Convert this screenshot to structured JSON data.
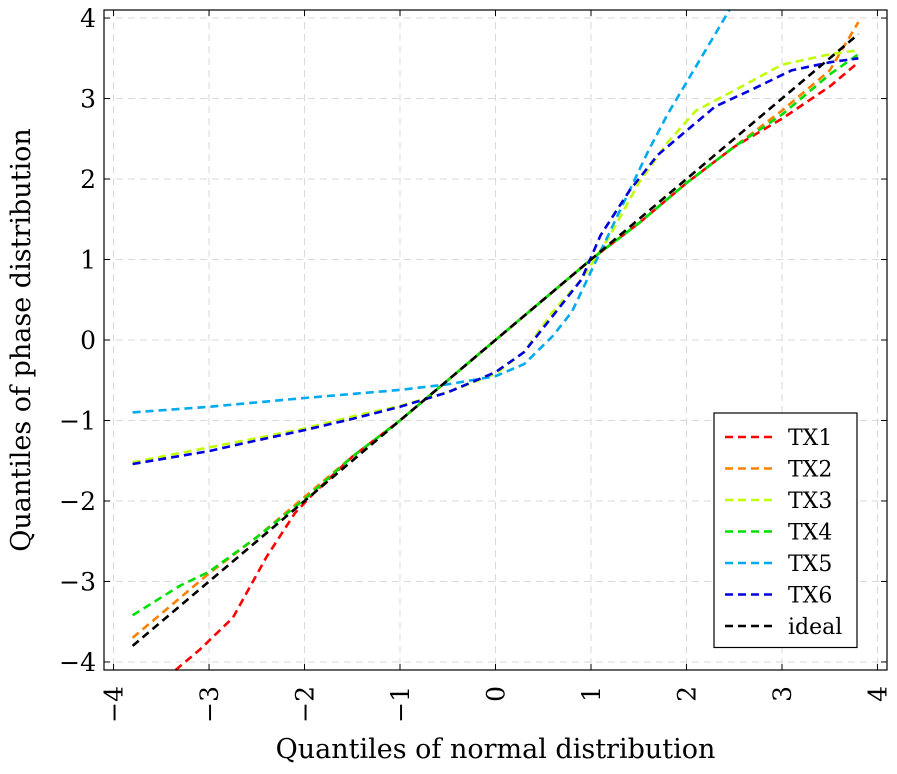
{
  "chart_data": {
    "type": "line",
    "title": "",
    "xlabel": "Quantiles of normal distribution",
    "ylabel": "Quantiles of phase distribution",
    "xlim": [
      -4.1,
      4.1
    ],
    "ylim": [
      -4.1,
      4.1
    ],
    "xticks": [
      -4,
      -3,
      -2,
      -1,
      0,
      1,
      2,
      3,
      4
    ],
    "xtick_labels": [
      "−4",
      "−3",
      "−2",
      "−1",
      "0",
      "1",
      "2",
      "3",
      "4"
    ],
    "yticks": [
      -4,
      -3,
      -2,
      -1,
      0,
      1,
      2,
      3,
      4
    ],
    "ytick_labels": [
      "−4",
      "−3",
      "−2",
      "−1",
      "0",
      "1",
      "2",
      "3",
      "4"
    ],
    "grid": true,
    "legend_position": "bottom-right",
    "series": [
      {
        "name": "TX1",
        "color": "#ff0000",
        "points": [
          [
            -3.35,
            -4.1
          ],
          [
            -3.1,
            -3.85
          ],
          [
            -2.75,
            -3.45
          ],
          [
            -2.4,
            -2.7
          ],
          [
            -2.1,
            -2.15
          ],
          [
            -1.9,
            -1.9
          ],
          [
            -1.5,
            -1.45
          ],
          [
            -1.0,
            -1.0
          ],
          [
            -0.5,
            -0.5
          ],
          [
            0,
            0
          ],
          [
            0.5,
            0.5
          ],
          [
            1.0,
            1.0
          ],
          [
            1.5,
            1.45
          ],
          [
            2.0,
            1.95
          ],
          [
            2.5,
            2.4
          ],
          [
            3.0,
            2.75
          ],
          [
            3.5,
            3.15
          ],
          [
            3.8,
            3.45
          ]
        ]
      },
      {
        "name": "TX2",
        "color": "#ff8000",
        "points": [
          [
            -3.8,
            -3.7
          ],
          [
            -3.5,
            -3.4
          ],
          [
            -3.0,
            -2.9
          ],
          [
            -2.5,
            -2.45
          ],
          [
            -2.0,
            -1.95
          ],
          [
            -1.5,
            -1.45
          ],
          [
            -1.0,
            -1.0
          ],
          [
            -0.5,
            -0.5
          ],
          [
            0,
            0
          ],
          [
            0.5,
            0.5
          ],
          [
            1.0,
            1.0
          ],
          [
            1.5,
            1.45
          ],
          [
            2.0,
            1.95
          ],
          [
            2.5,
            2.4
          ],
          [
            3.0,
            2.85
          ],
          [
            3.5,
            3.35
          ],
          [
            3.8,
            3.95
          ]
        ]
      },
      {
        "name": "TX3",
        "color": "#c0ff00",
        "points": [
          [
            -3.8,
            -1.52
          ],
          [
            -3.2,
            -1.38
          ],
          [
            -2.5,
            -1.22
          ],
          [
            -2.0,
            -1.1
          ],
          [
            -1.5,
            -0.95
          ],
          [
            -1.0,
            -0.82
          ],
          [
            -0.5,
            -0.65
          ],
          [
            0,
            -0.42
          ],
          [
            0.3,
            -0.15
          ],
          [
            0.6,
            0.35
          ],
          [
            0.9,
            0.75
          ],
          [
            1.2,
            1.3
          ],
          [
            1.5,
            1.95
          ],
          [
            1.8,
            2.45
          ],
          [
            2.1,
            2.85
          ],
          [
            2.5,
            3.1
          ],
          [
            3.0,
            3.42
          ],
          [
            3.5,
            3.55
          ],
          [
            3.8,
            3.6
          ]
        ]
      },
      {
        "name": "TX4",
        "color": "#00e000",
        "points": [
          [
            -3.8,
            -3.42
          ],
          [
            -3.3,
            -3.05
          ],
          [
            -3.0,
            -2.88
          ],
          [
            -2.5,
            -2.45
          ],
          [
            -2.0,
            -1.98
          ],
          [
            -1.5,
            -1.45
          ],
          [
            -1.0,
            -1.0
          ],
          [
            -0.5,
            -0.5
          ],
          [
            0,
            0
          ],
          [
            0.5,
            0.5
          ],
          [
            1.0,
            1.0
          ],
          [
            1.5,
            1.45
          ],
          [
            2.0,
            1.95
          ],
          [
            2.5,
            2.4
          ],
          [
            3.0,
            2.8
          ],
          [
            3.5,
            3.3
          ],
          [
            3.8,
            3.55
          ]
        ]
      },
      {
        "name": "TX5",
        "color": "#00aaee",
        "points": [
          [
            -3.8,
            -0.9
          ],
          [
            -3.0,
            -0.83
          ],
          [
            -2.0,
            -0.72
          ],
          [
            -1.0,
            -0.62
          ],
          [
            -0.5,
            -0.55
          ],
          [
            0,
            -0.45
          ],
          [
            0.3,
            -0.3
          ],
          [
            0.6,
            0.05
          ],
          [
            0.8,
            0.35
          ],
          [
            1.0,
            0.85
          ],
          [
            1.2,
            1.35
          ],
          [
            1.4,
            1.85
          ],
          [
            1.6,
            2.35
          ],
          [
            1.8,
            2.8
          ],
          [
            2.0,
            3.2
          ],
          [
            2.2,
            3.6
          ],
          [
            2.35,
            3.9
          ],
          [
            2.45,
            4.1
          ]
        ]
      },
      {
        "name": "TX6",
        "color": "#0000e0",
        "points": [
          [
            -3.8,
            -1.54
          ],
          [
            -3.0,
            -1.38
          ],
          [
            -2.7,
            -1.3
          ],
          [
            -2.0,
            -1.12
          ],
          [
            -1.5,
            -0.98
          ],
          [
            -1.0,
            -0.83
          ],
          [
            -0.5,
            -0.65
          ],
          [
            0,
            -0.4
          ],
          [
            0.3,
            -0.15
          ],
          [
            0.6,
            0.3
          ],
          [
            0.9,
            0.75
          ],
          [
            1.1,
            1.3
          ],
          [
            1.4,
            1.85
          ],
          [
            1.7,
            2.3
          ],
          [
            2.0,
            2.6
          ],
          [
            2.3,
            2.9
          ],
          [
            2.7,
            3.12
          ],
          [
            3.1,
            3.35
          ],
          [
            3.5,
            3.45
          ],
          [
            3.8,
            3.5
          ]
        ]
      },
      {
        "name": "ideal",
        "color": "#000000",
        "points": [
          [
            -3.8,
            -3.8
          ],
          [
            3.8,
            3.8
          ]
        ]
      }
    ]
  }
}
